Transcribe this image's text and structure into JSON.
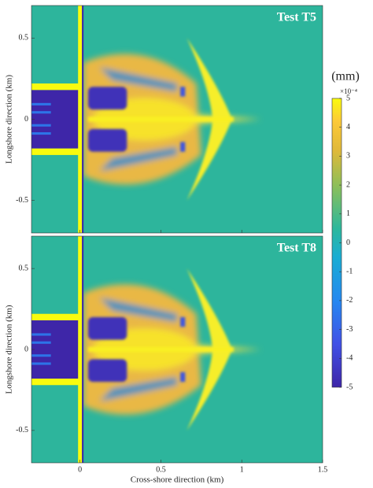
{
  "chart_data": [
    {
      "type": "heatmap",
      "title": "Test T5",
      "ylabel": "Longshore direction (km)",
      "xlim": [
        -0.3,
        1.5
      ],
      "ylim": [
        -0.7,
        0.7
      ],
      "xticks": [
        0,
        0.5,
        1,
        1.5
      ],
      "yticks": [
        -0.5,
        0,
        0.5
      ]
    },
    {
      "type": "heatmap",
      "title": "Test T8",
      "ylabel": "Longshore direction (km)",
      "xlabel": "Cross-shore direction (km)",
      "xlim": [
        -0.3,
        1.5
      ],
      "ylim": [
        -0.7,
        0.7
      ],
      "xticks": [
        0,
        0.5,
        1,
        1.5
      ],
      "yticks": [
        -0.5,
        0,
        0.5
      ]
    }
  ],
  "colorbar": {
    "label": "(mm)",
    "scale_label": "×10⁻⁴",
    "clim": [
      -5,
      5
    ],
    "ticks": [
      -5,
      -4,
      -3,
      -2,
      -1,
      0,
      1,
      2,
      3,
      4,
      5
    ]
  }
}
